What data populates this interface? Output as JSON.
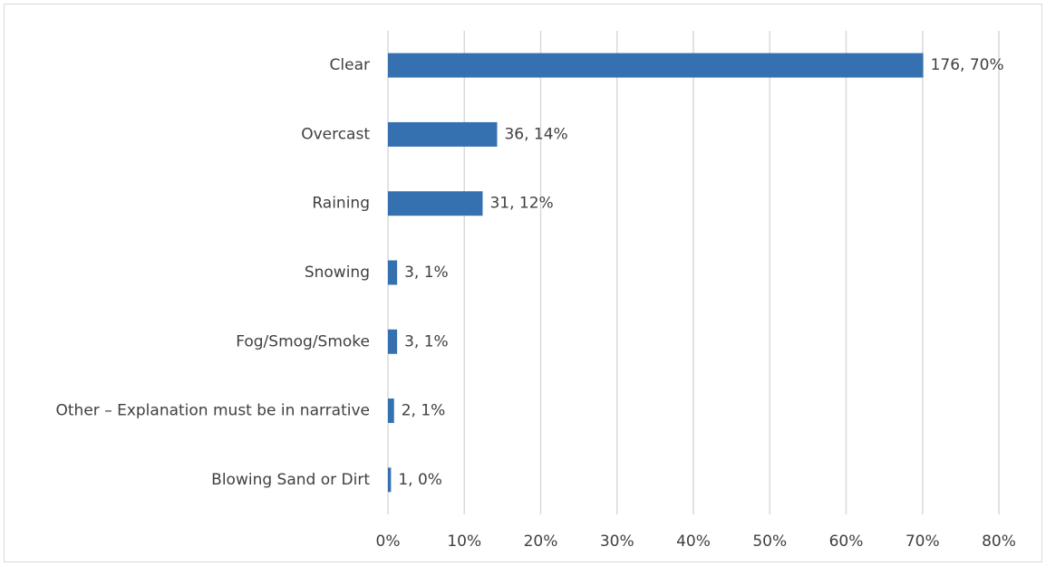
{
  "chart_data": {
    "type": "bar",
    "orientation": "horizontal",
    "categories": [
      "Clear",
      "Overcast",
      "Raining",
      "Snowing",
      "Fog/Smog/Smoke",
      "Other – Explanation must be in narrative",
      "Blowing Sand or Dirt"
    ],
    "values": [
      70.1,
      14.3,
      12.4,
      1.2,
      1.2,
      0.8,
      0.4
    ],
    "value_labels": [
      "176, 70%",
      "36, 14%",
      "31, 12%",
      "3, 1%",
      "3, 1%",
      "2, 1%",
      "1, 0%"
    ],
    "color": "#3571b1",
    "xlim": [
      0,
      80
    ],
    "xticks": [
      {
        "value": 0,
        "label": "0%"
      },
      {
        "value": 10,
        "label": "10%"
      },
      {
        "value": 20,
        "label": "20%"
      },
      {
        "value": 30,
        "label": "30%"
      },
      {
        "value": 40,
        "label": "40%"
      },
      {
        "value": 50,
        "label": "50%"
      },
      {
        "value": 60,
        "label": "60%"
      },
      {
        "value": 70,
        "label": "70%"
      },
      {
        "value": 80,
        "label": "80%"
      }
    ],
    "grid": true
  }
}
